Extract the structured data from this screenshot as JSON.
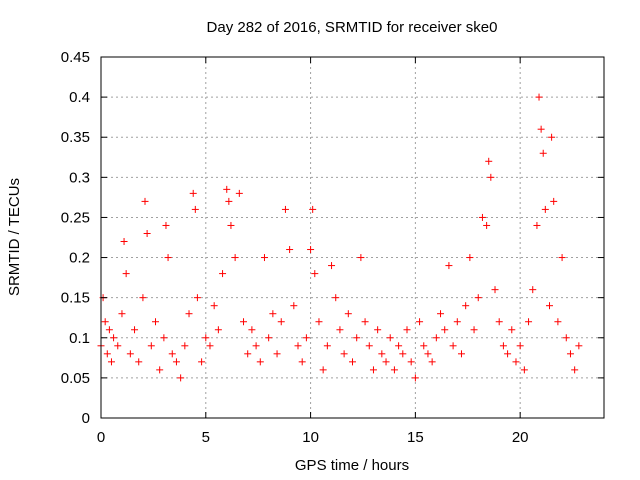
{
  "chart_data": {
    "type": "scatter",
    "title": "Day 282 of 2016, SRMTID for receiver ske0",
    "xlabel": "GPS time / hours",
    "ylabel": "SRMTID / TECUs",
    "xlim": [
      0,
      24
    ],
    "ylim": [
      0,
      0.45
    ],
    "xticks": [
      {
        "value": 0,
        "label": "0"
      },
      {
        "value": 5,
        "label": "5"
      },
      {
        "value": 10,
        "label": "10"
      },
      {
        "value": 15,
        "label": "15"
      },
      {
        "value": 20,
        "label": "20"
      }
    ],
    "yticks": [
      {
        "value": 0,
        "label": "0"
      },
      {
        "value": 0.05,
        "label": "0.05"
      },
      {
        "value": 0.1,
        "label": "0.1"
      },
      {
        "value": 0.15,
        "label": "0.15"
      },
      {
        "value": 0.2,
        "label": "0.2"
      },
      {
        "value": 0.25,
        "label": "0.25"
      },
      {
        "value": 0.3,
        "label": "0.3"
      },
      {
        "value": 0.35,
        "label": "0.35"
      },
      {
        "value": 0.4,
        "label": "0.4"
      },
      {
        "value": 0.45,
        "label": "0.45"
      }
    ],
    "grid": true,
    "marker": "plus",
    "series_color": "#ff0000",
    "x_range_of_data": [
      0,
      22.8
    ],
    "series": [
      {
        "name": "SRMTID",
        "x": [
          0.0,
          0.1,
          0.2,
          0.3,
          0.4,
          0.5,
          0.6,
          0.8,
          1.0,
          1.1,
          1.2,
          1.4,
          1.6,
          1.8,
          2.0,
          2.1,
          2.2,
          2.4,
          2.6,
          2.8,
          3.0,
          3.1,
          3.2,
          3.4,
          3.6,
          3.8,
          4.0,
          4.2,
          4.4,
          4.5,
          4.6,
          4.8,
          5.0,
          5.2,
          5.4,
          5.6,
          5.8,
          6.0,
          6.1,
          6.2,
          6.4,
          6.6,
          6.8,
          7.0,
          7.2,
          7.4,
          7.6,
          7.8,
          8.0,
          8.2,
          8.4,
          8.6,
          8.8,
          9.0,
          9.2,
          9.4,
          9.6,
          9.8,
          10.0,
          10.1,
          10.2,
          10.4,
          10.6,
          10.8,
          11.0,
          11.2,
          11.4,
          11.6,
          11.8,
          12.0,
          12.2,
          12.4,
          12.6,
          12.8,
          13.0,
          13.2,
          13.4,
          13.6,
          13.8,
          14.0,
          14.2,
          14.4,
          14.6,
          14.8,
          15.0,
          15.2,
          15.4,
          15.6,
          15.8,
          16.0,
          16.2,
          16.4,
          16.6,
          16.8,
          17.0,
          17.2,
          17.4,
          17.6,
          17.8,
          18.0,
          18.2,
          18.4,
          18.5,
          18.6,
          18.8,
          19.0,
          19.2,
          19.4,
          19.6,
          19.8,
          20.0,
          20.2,
          20.4,
          20.6,
          20.8,
          20.9,
          21.0,
          21.1,
          21.2,
          21.4,
          21.5,
          21.6,
          21.8,
          22.0,
          22.2,
          22.4,
          22.6,
          22.8
        ],
        "y": [
          0.09,
          0.15,
          0.12,
          0.08,
          0.11,
          0.07,
          0.1,
          0.09,
          0.13,
          0.22,
          0.18,
          0.08,
          0.11,
          0.07,
          0.15,
          0.27,
          0.23,
          0.09,
          0.12,
          0.06,
          0.1,
          0.24,
          0.2,
          0.08,
          0.07,
          0.05,
          0.09,
          0.13,
          0.28,
          0.26,
          0.15,
          0.07,
          0.1,
          0.09,
          0.14,
          0.11,
          0.18,
          0.285,
          0.27,
          0.24,
          0.2,
          0.28,
          0.12,
          0.08,
          0.11,
          0.09,
          0.07,
          0.2,
          0.1,
          0.13,
          0.08,
          0.12,
          0.26,
          0.21,
          0.14,
          0.09,
          0.07,
          0.1,
          0.21,
          0.26,
          0.18,
          0.12,
          0.06,
          0.09,
          0.19,
          0.15,
          0.11,
          0.08,
          0.13,
          0.07,
          0.1,
          0.2,
          0.12,
          0.09,
          0.06,
          0.11,
          0.08,
          0.07,
          0.1,
          0.06,
          0.09,
          0.08,
          0.11,
          0.07,
          0.05,
          0.12,
          0.09,
          0.08,
          0.07,
          0.1,
          0.13,
          0.11,
          0.19,
          0.09,
          0.12,
          0.08,
          0.14,
          0.2,
          0.11,
          0.15,
          0.25,
          0.24,
          0.32,
          0.3,
          0.16,
          0.12,
          0.09,
          0.08,
          0.11,
          0.07,
          0.09,
          0.06,
          0.12,
          0.16,
          0.24,
          0.4,
          0.36,
          0.33,
          0.26,
          0.14,
          0.35,
          0.27,
          0.12,
          0.2,
          0.1,
          0.08,
          0.06,
          0.09
        ]
      }
    ]
  }
}
